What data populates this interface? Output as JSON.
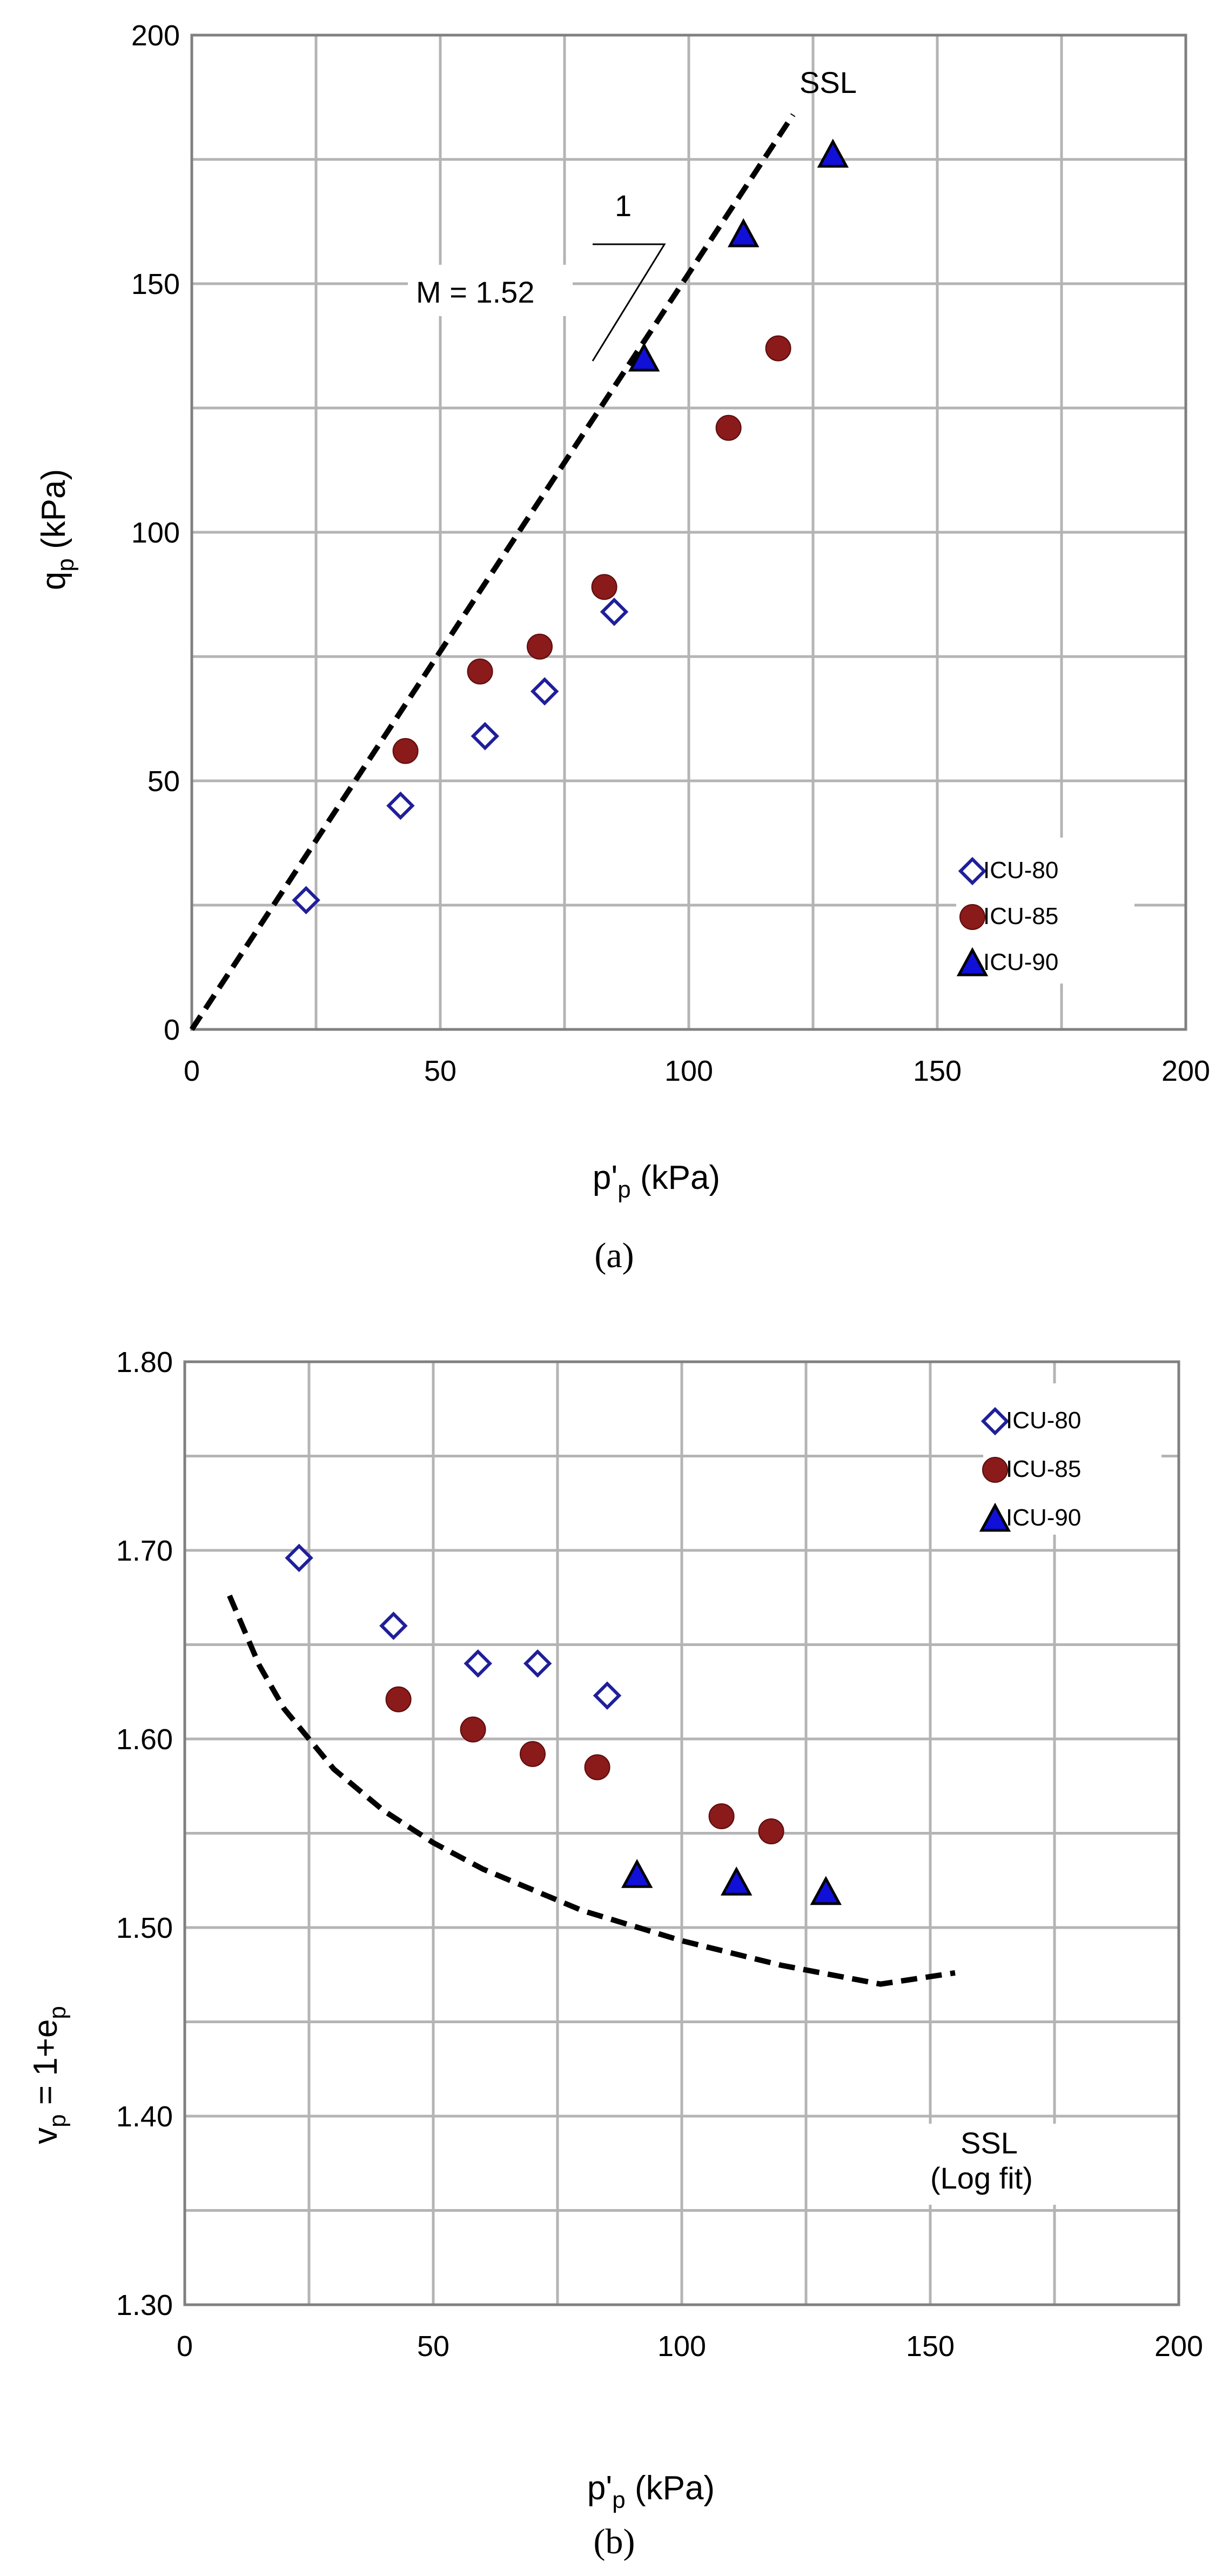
{
  "chart_data": [
    {
      "type": "scatter",
      "panel_label": "(a)",
      "xlabel": "p'p (kPa)",
      "ylabel": "qp (kPa)",
      "xlim": [
        0,
        200
      ],
      "ylim": [
        0,
        200
      ],
      "x_ticks": [
        0,
        50,
        100,
        150,
        200
      ],
      "y_ticks": [
        0,
        50,
        100,
        150,
        200
      ],
      "x_tick_labels": [
        "0",
        "50",
        "100",
        "150",
        "200"
      ],
      "y_tick_labels": [
        "0",
        "50",
        "100",
        "150",
        "200"
      ],
      "grid": true,
      "legend_position": "bottom-right",
      "series": [
        {
          "name": "ICU-80",
          "marker": "diamond-open",
          "color": "#1f1f9a",
          "x": [
            23,
            42,
            59,
            71,
            85
          ],
          "y": [
            26,
            45,
            59,
            68,
            84
          ]
        },
        {
          "name": "ICU-85",
          "marker": "circle-filled",
          "color": "#8b1a1a",
          "x": [
            43,
            58,
            70,
            83,
            108,
            118
          ],
          "y": [
            56,
            72,
            77,
            89,
            121,
            137
          ]
        },
        {
          "name": "ICU-90",
          "marker": "triangle-filled",
          "color": "#1010d8",
          "x": [
            91,
            111,
            129
          ],
          "y": [
            135,
            160,
            176
          ]
        }
      ],
      "lines": [
        {
          "name": "SSL",
          "label": "SSL",
          "style": "dashed",
          "x": [
            0,
            121
          ],
          "y": [
            0,
            184
          ]
        }
      ],
      "annotations": {
        "slope_text": "M = 1.52",
        "slope_run": "1"
      }
    },
    {
      "type": "scatter",
      "panel_label": "(b)",
      "xlabel": "p'p (kPa)",
      "ylabel": "vp = 1+ep",
      "xlim": [
        0,
        200
      ],
      "ylim": [
        1.3,
        1.8
      ],
      "x_ticks": [
        0,
        50,
        100,
        150,
        200
      ],
      "y_ticks": [
        1.3,
        1.4,
        1.5,
        1.6,
        1.7,
        1.8
      ],
      "x_tick_labels": [
        "0",
        "50",
        "100",
        "150",
        "200"
      ],
      "y_tick_labels": [
        "1.30",
        "1.40",
        "1.50",
        "1.60",
        "1.70",
        "1.80"
      ],
      "grid": true,
      "legend_position": "top-right",
      "series": [
        {
          "name": "ICU-80",
          "marker": "diamond-open",
          "color": "#1f1f9a",
          "x": [
            23,
            42,
            59,
            71,
            85
          ],
          "y": [
            1.696,
            1.66,
            1.64,
            1.64,
            1.623
          ]
        },
        {
          "name": "ICU-85",
          "marker": "circle-filled",
          "color": "#8b1a1a",
          "x": [
            43,
            58,
            70,
            83,
            108,
            118
          ],
          "y": [
            1.621,
            1.605,
            1.592,
            1.585,
            1.559,
            1.551
          ]
        },
        {
          "name": "ICU-90",
          "marker": "triangle-filled",
          "color": "#1010d8",
          "x": [
            91,
            111,
            129
          ],
          "y": [
            1.528,
            1.524,
            1.519
          ]
        }
      ],
      "lines": [
        {
          "name": "SSL",
          "label": "SSL",
          "sublabel": "(Log fit)",
          "style": "dashed",
          "x": [
            9,
            15,
            20,
            30,
            40,
            50,
            60,
            80,
            100,
            120,
            140,
            155
          ],
          "y": [
            1.676,
            1.639,
            1.616,
            1.584,
            1.562,
            1.545,
            1.531,
            1.509,
            1.493,
            1.48,
            1.47,
            1.476
          ]
        }
      ]
    }
  ],
  "captions": {
    "a": "(a)",
    "b": "(b)"
  }
}
